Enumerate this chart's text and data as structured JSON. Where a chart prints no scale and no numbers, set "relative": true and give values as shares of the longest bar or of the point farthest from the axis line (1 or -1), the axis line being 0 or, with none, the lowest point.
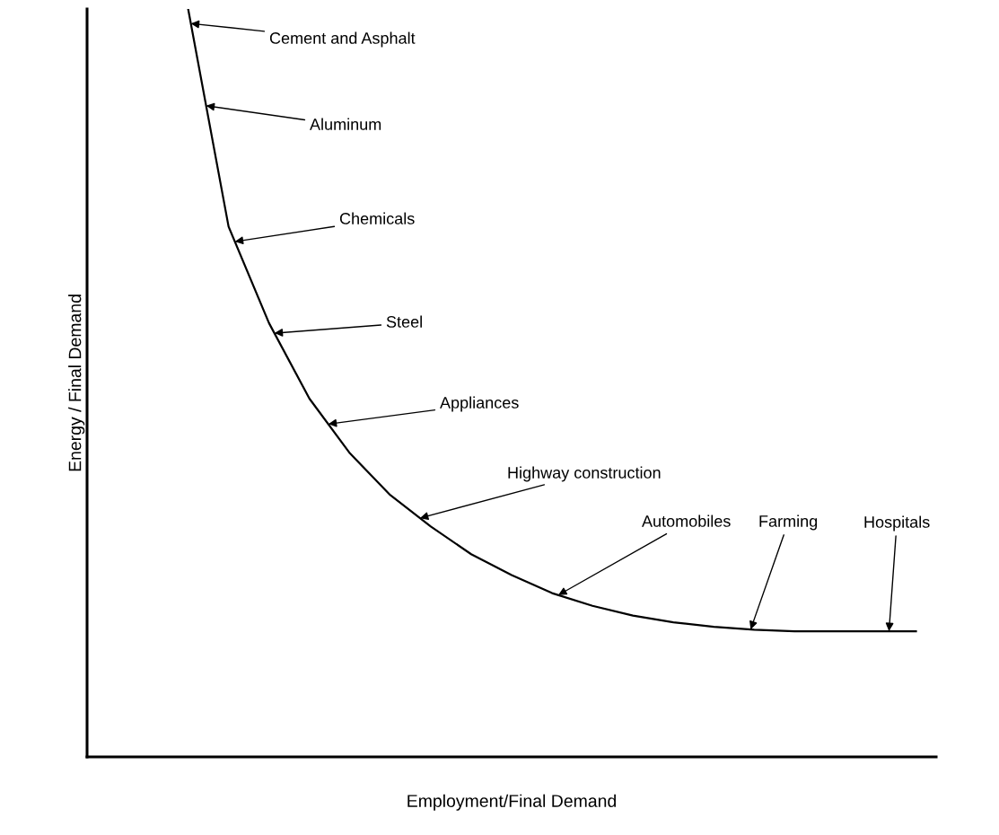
{
  "chart_data": {
    "type": "line",
    "relative": true,
    "xlabel": "Employment/Final Demand",
    "ylabel": "Energy / Final Demand",
    "categories": [
      null,
      null,
      null,
      null,
      null,
      null,
      null,
      null,
      null,
      null,
      null,
      null,
      null,
      null,
      null,
      null,
      null,
      null,
      null
    ],
    "series": [
      {
        "color": "#000000",
        "values": [
          1.0,
          0.709,
          0.58,
          0.479,
          0.406,
          0.35,
          0.308,
          0.271,
          0.243,
          0.219,
          0.202,
          0.189,
          0.18,
          0.174,
          0.17,
          0.168,
          0.168,
          0.168,
          0.168
        ]
      }
    ],
    "annotations": [
      "Cement and Asphalt",
      "Aluminum",
      "Chemicals",
      "Steel",
      "Appliances",
      "Highway construction",
      "Automobiles",
      "Farming",
      "Hospitals"
    ],
    "legend": false,
    "marker": "none",
    "line_style": "solid"
  }
}
